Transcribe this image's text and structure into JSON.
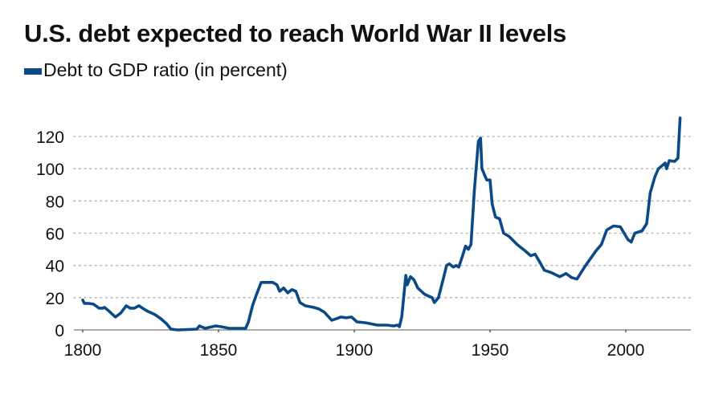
{
  "chart_data": {
    "type": "line",
    "title": "U.S. debt expected to reach World War II levels",
    "legend_position": "top-left",
    "xlabel": "",
    "ylabel": "",
    "xlim": [
      1800,
      2024
    ],
    "ylim": [
      0,
      130
    ],
    "grid": "horizontal dotted",
    "x_ticks": [
      1800,
      1850,
      1900,
      1950,
      2000
    ],
    "x_tick_labels": [
      "1800",
      "1850",
      "1900",
      "1950",
      "2000"
    ],
    "y_ticks": [
      0,
      20,
      40,
      60,
      80,
      100,
      120
    ],
    "y_tick_labels": [
      "0",
      "20",
      "40",
      "60",
      "80",
      "100",
      "120"
    ],
    "series": [
      {
        "name": "Debt to GDP ratio (in percent)",
        "color": "#0b4a86",
        "x": [
          1800,
          1800.6,
          1802,
          1804,
          1806,
          1807.4,
          1808,
          1809.8,
          1812,
          1814,
          1816,
          1817.5,
          1819,
          1820.7,
          1822,
          1824,
          1826.6,
          1828.7,
          1830.8,
          1832.5,
          1835,
          1842,
          1843,
          1845,
          1849,
          1851,
          1854,
          1860,
          1861,
          1862.5,
          1864,
          1865.7,
          1868,
          1870,
          1871.5,
          1872.5,
          1874,
          1875.5,
          1877,
          1878.5,
          1880,
          1882,
          1885,
          1887,
          1889,
          1891.7,
          1893.5,
          1895,
          1897,
          1899,
          1901,
          1904,
          1908.6,
          1912,
          1914.5,
          1916,
          1916.6,
          1917.5,
          1919,
          1919.5,
          1920.7,
          1922,
          1923.4,
          1926,
          1928.7,
          1929.5,
          1931,
          1933,
          1934,
          1935,
          1936.5,
          1937.5,
          1938.5,
          1939.5,
          1941,
          1942,
          1943,
          1944.2,
          1945.7,
          1946.5,
          1947,
          1948.8,
          1950,
          1950.8,
          1952,
          1953.5,
          1955,
          1957,
          1960,
          1963,
          1965,
          1966.6,
          1968.7,
          1970,
          1972.7,
          1975.7,
          1978,
          1980,
          1982,
          1985,
          1989,
          1991,
          1993,
          1995.5,
          1998,
          2000.8,
          2002,
          2003.3,
          2006,
          2007.7,
          2009,
          2010.7,
          2012,
          2014.5,
          2015,
          2016,
          2018,
          2019.2,
          2020
        ],
        "y": [
          18.5,
          16.5,
          16.5,
          16,
          13.5,
          13.5,
          14,
          11.5,
          8,
          10.5,
          15,
          13.5,
          13.5,
          15,
          13.5,
          11.5,
          9.5,
          7,
          4,
          0.5,
          0,
          0.5,
          2.5,
          1,
          2.5,
          2,
          1,
          1,
          5,
          15,
          22,
          29.5,
          29.5,
          29.5,
          28,
          24,
          26,
          23,
          25,
          24,
          17,
          15,
          14,
          13,
          11,
          6,
          7,
          8,
          7.5,
          8,
          5,
          4.5,
          3,
          3,
          2.5,
          3,
          2,
          8,
          33.8,
          28,
          33,
          31,
          26,
          22,
          20,
          17,
          20,
          33,
          40,
          41,
          39,
          40,
          39,
          44,
          52,
          50,
          53,
          86,
          117,
          119,
          100,
          93,
          93,
          78,
          70,
          69,
          60,
          58,
          53,
          49,
          46,
          47,
          41,
          37,
          35.5,
          33,
          35,
          32.5,
          31.5,
          39.5,
          49,
          53,
          62,
          64.5,
          64,
          56,
          54.5,
          60,
          61.5,
          66,
          85,
          95,
          100,
          103.5,
          100,
          105,
          104.5,
          106.5,
          131.5
        ]
      }
    ]
  }
}
